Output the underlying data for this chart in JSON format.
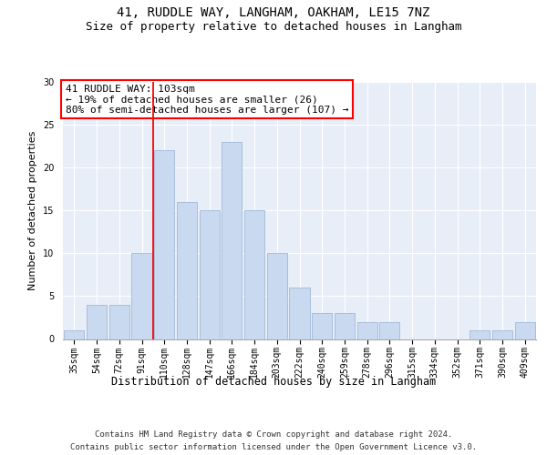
{
  "title1": "41, RUDDLE WAY, LANGHAM, OAKHAM, LE15 7NZ",
  "title2": "Size of property relative to detached houses in Langham",
  "xlabel": "Distribution of detached houses by size in Langham",
  "ylabel": "Number of detached properties",
  "categories": [
    "35sqm",
    "54sqm",
    "72sqm",
    "91sqm",
    "110sqm",
    "128sqm",
    "147sqm",
    "166sqm",
    "184sqm",
    "203sqm",
    "222sqm",
    "240sqm",
    "259sqm",
    "278sqm",
    "296sqm",
    "315sqm",
    "334sqm",
    "352sqm",
    "371sqm",
    "390sqm",
    "409sqm"
  ],
  "values": [
    1,
    4,
    4,
    10,
    22,
    16,
    15,
    23,
    15,
    10,
    6,
    3,
    3,
    2,
    2,
    0,
    0,
    0,
    1,
    1,
    2
  ],
  "bar_color": "#c9d9f0",
  "bar_edge_color": "#a0b8d8",
  "annotation_text": "41 RUDDLE WAY: 103sqm\n← 19% of detached houses are smaller (26)\n80% of semi-detached houses are larger (107) →",
  "annotation_box_color": "white",
  "annotation_box_edge_color": "red",
  "redline_x": 4,
  "ylim": [
    0,
    30
  ],
  "yticks": [
    0,
    5,
    10,
    15,
    20,
    25,
    30
  ],
  "background_color": "#e8eef8",
  "footer_line1": "Contains HM Land Registry data © Crown copyright and database right 2024.",
  "footer_line2": "Contains public sector information licensed under the Open Government Licence v3.0.",
  "title1_fontsize": 10,
  "title2_fontsize": 9,
  "xlabel_fontsize": 8.5,
  "ylabel_fontsize": 8,
  "tick_fontsize": 7,
  "annotation_fontsize": 8,
  "footer_fontsize": 6.5
}
